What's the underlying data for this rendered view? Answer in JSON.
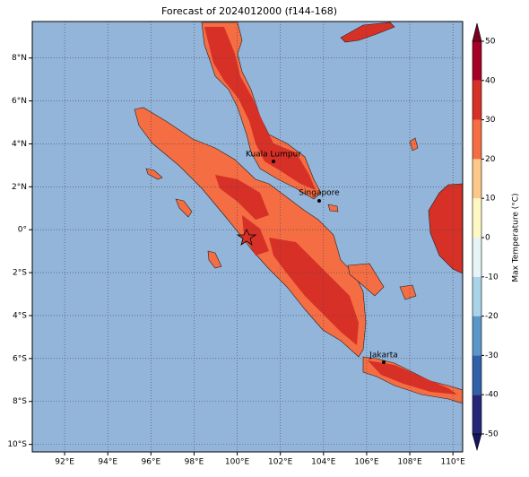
{
  "title": "Forecast of 2024012000 (f144-168)",
  "map": {
    "lonlim": [
      90.5,
      110.45
    ],
    "latlim": [
      -10.35,
      9.7
    ],
    "ocean_color": "#93b5da",
    "land_color": "#f46d43",
    "land_dark_color": "#d73027",
    "grid": true,
    "lon_ticks": [
      {
        "value": 92,
        "label": "92°E"
      },
      {
        "value": 94,
        "label": "94°E"
      },
      {
        "value": 96,
        "label": "96°E"
      },
      {
        "value": 98,
        "label": "98°E"
      },
      {
        "value": 100,
        "label": "100°E"
      },
      {
        "value": 102,
        "label": "102°E"
      },
      {
        "value": 104,
        "label": "104°E"
      },
      {
        "value": 106,
        "label": "106°E"
      },
      {
        "value": 108,
        "label": "108°E"
      },
      {
        "value": 110,
        "label": "110°E"
      }
    ],
    "lat_ticks": [
      {
        "value": 8,
        "label": "8°N"
      },
      {
        "value": 6,
        "label": "6°N"
      },
      {
        "value": 4,
        "label": "4°N"
      },
      {
        "value": 2,
        "label": "2°N"
      },
      {
        "value": 0,
        "label": "0°"
      },
      {
        "value": -2,
        "label": "2°S"
      },
      {
        "value": -4,
        "label": "4°S"
      },
      {
        "value": -6,
        "label": "6°S"
      },
      {
        "value": -8,
        "label": "8°S"
      },
      {
        "value": -10,
        "label": "10°S"
      }
    ],
    "cities": [
      {
        "name": "Kuala Lumpur"
      },
      {
        "name": "Singapore"
      },
      {
        "name": "Jakarta"
      }
    ]
  },
  "colorbar": {
    "label": "Max Temperature (°C)",
    "lim": [
      -50,
      50
    ],
    "ticks": [
      -50,
      -40,
      -30,
      -20,
      -10,
      0,
      10,
      20,
      30,
      40,
      50
    ],
    "levels": [
      -50,
      -40,
      -30,
      -20,
      -10,
      0,
      10,
      20,
      30,
      40,
      50
    ],
    "colors": [
      "#262678",
      "#3060a8",
      "#5a96c8",
      "#a9d4e8",
      "#e6f4f7",
      "#fef8c4",
      "#fdc88a",
      "#f46d43",
      "#d73027",
      "#a50026"
    ],
    "under_color": "#16165a",
    "over_color": "#7a0020"
  }
}
